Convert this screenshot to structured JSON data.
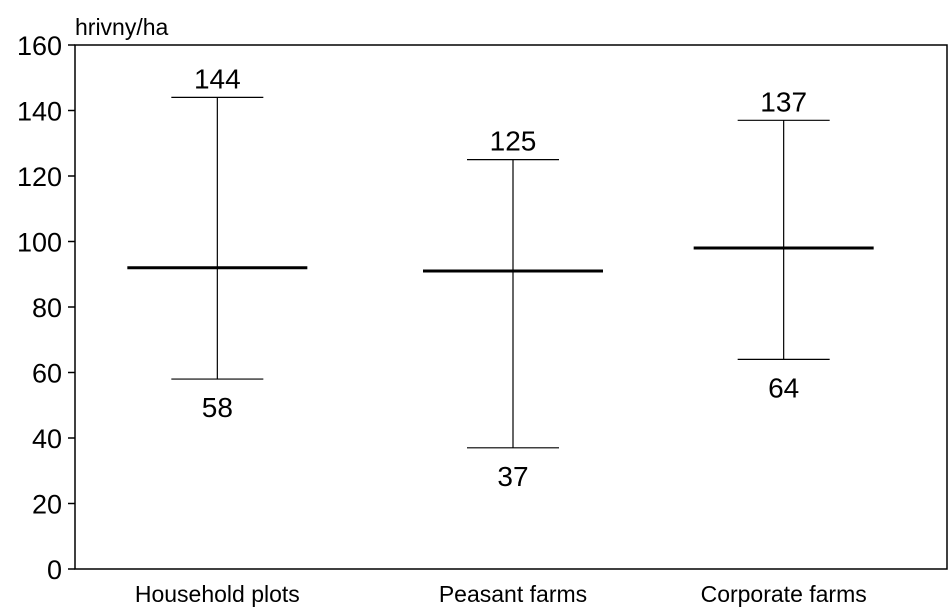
{
  "chart_data": {
    "type": "range",
    "ylabel": "hrivny/ha",
    "ylim": [
      0,
      160
    ],
    "yticks": [
      0,
      20,
      40,
      60,
      80,
      100,
      120,
      140,
      160
    ],
    "grid": false,
    "legend": "none",
    "categories": [
      "Household plots",
      "Peasant farms",
      "Corporate farms"
    ],
    "series": [
      {
        "values_min": [
          58,
          37,
          64
        ],
        "values_mean": [
          92,
          91,
          98
        ],
        "values_max": [
          144,
          125,
          137
        ]
      }
    ],
    "min_labels": [
      "58",
      "37",
      "64"
    ],
    "max_labels": [
      "144",
      "125",
      "137"
    ],
    "line_color": "#000000"
  }
}
